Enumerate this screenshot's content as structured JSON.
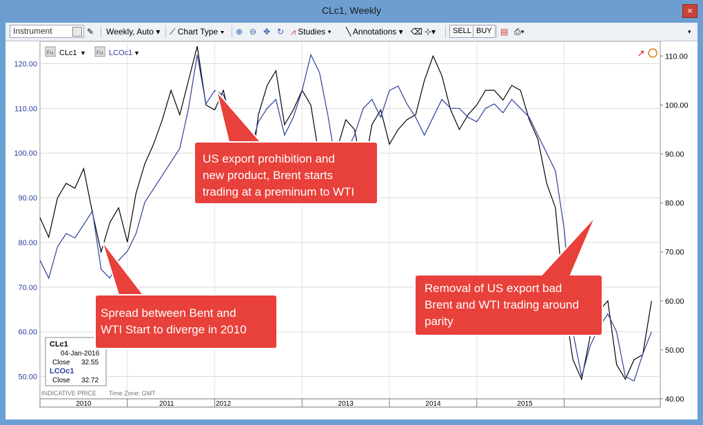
{
  "window": {
    "title": "CLc1, Weekly",
    "close_label": "×"
  },
  "toolbar": {
    "instrument_placeholder": "Instrument",
    "interval": "Weekly, Auto",
    "chart_type": "Chart Type",
    "studies": "Studies",
    "annotations": "Annotations",
    "sell": "SELL",
    "buy": "BUY"
  },
  "legend_tags": {
    "series1": "CLc1",
    "series2": "LCOc1",
    "tag": "Fu"
  },
  "info_box": {
    "s1_name": "CLc1",
    "date": "04-Jan-2016",
    "s1_label": "Close",
    "s1_value": "32.55",
    "s2_name": "LCOc1",
    "s2_label": "Close",
    "s2_value": "32.72"
  },
  "footer": {
    "indicative": "INDICATIVE PRICE",
    "timezone": "Time Zone: GMT"
  },
  "colors": {
    "series1": "#000000",
    "series2": "#2b3d9e",
    "callout": "#e8403a",
    "left_axis_text": "#2b3d9e"
  },
  "annotations": {
    "a1": [
      "US export prohibition and",
      "new product, Brent starts",
      "trading at a preminum to WTI"
    ],
    "a2": [
      "Spread between Bent and",
      "WTI Start to diverge in 2010"
    ],
    "a3": [
      "Removal of US export bad",
      "Brent and WTI trading around",
      "parity"
    ]
  },
  "chart_data": {
    "type": "line",
    "x_labels": [
      "2010",
      "2011",
      "2012",
      "2013",
      "2014",
      "2015"
    ],
    "left_axis": {
      "ticks": [
        "120.00",
        "110.00",
        "100.00",
        "90.00",
        "80.00",
        "70.00",
        "60.00",
        "50.00"
      ],
      "range": [
        45,
        125
      ]
    },
    "right_axis": {
      "ticks": [
        "110.00",
        "100.00",
        "90.00",
        "80.00",
        "70.00",
        "60.00",
        "50.00",
        "40.00"
      ],
      "range": [
        40,
        113
      ]
    },
    "grid": true,
    "series": [
      {
        "name": "CLc1",
        "axis": "right",
        "x": [
          2009.0,
          2009.1,
          2009.2,
          2009.3,
          2009.4,
          2009.5,
          2009.6,
          2009.7,
          2009.8,
          2009.9,
          2010.0,
          2010.1,
          2010.2,
          2010.3,
          2010.4,
          2010.5,
          2010.6,
          2010.7,
          2010.8,
          2010.9,
          2011.0,
          2011.1,
          2011.2,
          2011.3,
          2011.4,
          2011.5,
          2011.6,
          2011.7,
          2011.8,
          2011.9,
          2012.0,
          2012.1,
          2012.2,
          2012.3,
          2012.4,
          2012.5,
          2012.6,
          2012.7,
          2012.8,
          2012.9,
          2013.0,
          2013.1,
          2013.2,
          2013.3,
          2013.4,
          2013.5,
          2013.6,
          2013.7,
          2013.8,
          2013.9,
          2014.0,
          2014.1,
          2014.2,
          2014.3,
          2014.4,
          2014.5,
          2014.6,
          2014.7,
          2014.8,
          2014.9,
          2015.0,
          2015.1,
          2015.2,
          2015.3,
          2015.4,
          2015.5,
          2015.6,
          2015.7,
          2015.8,
          2015.9,
          2016.0
        ],
        "values": [
          77,
          73,
          81,
          84,
          83,
          87,
          78,
          70,
          76,
          79,
          72,
          82,
          88,
          92,
          97,
          103,
          98,
          105,
          112,
          100,
          99,
          103,
          95,
          94,
          84,
          98,
          104,
          107,
          96,
          99,
          103,
          100,
          89,
          92,
          91,
          97,
          95,
          86,
          96,
          99,
          92,
          95,
          97,
          98,
          105,
          110,
          106,
          99,
          95,
          98,
          100,
          103,
          103,
          101,
          104,
          103,
          97,
          93,
          84,
          79,
          60,
          48,
          44,
          53,
          58,
          60,
          47,
          44,
          48,
          49,
          60
        ]
      },
      {
        "name": "LCOc1",
        "axis": "left",
        "x": [
          2009.0,
          2009.1,
          2009.2,
          2009.3,
          2009.4,
          2009.5,
          2009.6,
          2009.7,
          2009.8,
          2009.9,
          2010.0,
          2010.1,
          2010.2,
          2010.3,
          2010.4,
          2010.5,
          2010.6,
          2010.7,
          2010.8,
          2010.9,
          2011.0,
          2011.1,
          2011.2,
          2011.3,
          2011.4,
          2011.5,
          2011.6,
          2011.7,
          2011.8,
          2011.9,
          2012.0,
          2012.1,
          2012.2,
          2012.3,
          2012.4,
          2012.5,
          2012.6,
          2012.7,
          2012.8,
          2012.9,
          2013.0,
          2013.1,
          2013.2,
          2013.3,
          2013.4,
          2013.5,
          2013.6,
          2013.7,
          2013.8,
          2013.9,
          2014.0,
          2014.1,
          2014.2,
          2014.3,
          2014.4,
          2014.5,
          2014.6,
          2014.7,
          2014.8,
          2014.9,
          2015.0,
          2015.1,
          2015.2,
          2015.3,
          2015.4,
          2015.5,
          2015.6,
          2015.7,
          2015.8,
          2015.9,
          2016.0
        ],
        "values": [
          76,
          72,
          79,
          82,
          81,
          84,
          87,
          74,
          72,
          76,
          78,
          82,
          89,
          92,
          95,
          98,
          101,
          110,
          122,
          111,
          114,
          113,
          108,
          105,
          100,
          107,
          110,
          112,
          104,
          108,
          114,
          122,
          118,
          108,
          96,
          100,
          104,
          110,
          112,
          108,
          114,
          115,
          111,
          108,
          104,
          108,
          112,
          110,
          110,
          108,
          107,
          110,
          111,
          109,
          112,
          110,
          108,
          104,
          100,
          96,
          83,
          60,
          50,
          57,
          61,
          64,
          60,
          50,
          49,
          55,
          60
        ]
      }
    ]
  }
}
